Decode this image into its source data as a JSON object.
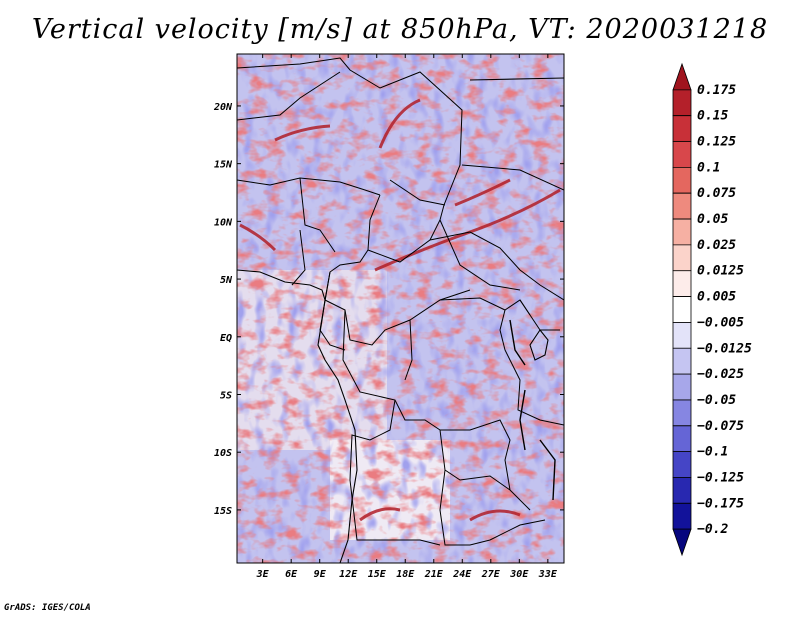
{
  "chart_data": {
    "type": "heatmap",
    "title": "Vertical velocity [m/s] at 850hPa, VT: 2020031218",
    "variable": "Vertical velocity",
    "units": "m/s",
    "level": "850hPa",
    "valid_time": "2020031218",
    "x_ticks": [
      "3E",
      "6E",
      "9E",
      "12E",
      "15E",
      "18E",
      "21E",
      "24E",
      "27E",
      "30E",
      "33E"
    ],
    "y_ticks": [
      "20N",
      "15N",
      "10N",
      "5N",
      "EQ",
      "5S",
      "10S",
      "15S"
    ],
    "x_tick_values": [
      3,
      6,
      9,
      12,
      15,
      18,
      21,
      24,
      27,
      30,
      33
    ],
    "y_tick_values": [
      20,
      15,
      10,
      5,
      0,
      -5,
      -10,
      -15
    ],
    "lon_range": [
      0.3,
      34.7
    ],
    "lat_range": [
      -19.6,
      24.5
    ],
    "colorbar": {
      "labels": [
        "0.175",
        "0.15",
        "0.125",
        "0.1",
        "0.075",
        "0.05",
        "0.025",
        "0.0125",
        "0.005",
        "−0.005",
        "−0.0125",
        "−0.025",
        "−0.05",
        "−0.075",
        "−0.1",
        "−0.125",
        "−0.175",
        "−0.2"
      ],
      "colors": [
        "#a0141e",
        "#b4202a",
        "#c83038",
        "#d8474b",
        "#e4675f",
        "#ee8a7e",
        "#f6b0a3",
        "#fbd3ca",
        "#fdecea",
        "#ffffff",
        "#e3e3f9",
        "#c5c5f2",
        "#a7a7ea",
        "#8686e2",
        "#6565d6",
        "#4545c6",
        "#2828b0",
        "#12129a",
        "#06067e"
      ]
    }
  },
  "credit": "GrADS: IGES/COLA"
}
